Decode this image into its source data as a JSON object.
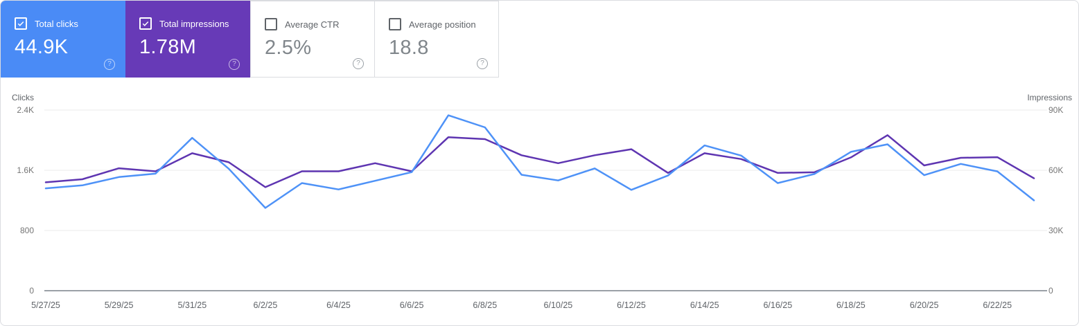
{
  "panel_title": "Search performance panel",
  "icons": {
    "help_glyph": "?",
    "checkbox_checked": "checkbox-checked-icon",
    "checkbox_unchecked": "checkbox-unchecked-icon"
  },
  "cards": [
    {
      "label": "Total clicks",
      "value": "44.9K",
      "checked": true,
      "bg": "#4a8bf6",
      "label_color": "#ffffff",
      "value_color": "#ffffff",
      "checkbox_color": "#ffffff",
      "help_color": "rgba(255,255,255,0.65)"
    },
    {
      "label": "Total impressions",
      "value": "1.78M",
      "checked": true,
      "bg": "#673ab7",
      "label_color": "#ffffff",
      "value_color": "#ffffff",
      "checkbox_color": "#ffffff",
      "help_color": "rgba(255,255,255,0.65)"
    },
    {
      "label": "Average CTR",
      "value": "2.5%",
      "checked": false,
      "bg": "#ffffff",
      "label_color": "#5f6368",
      "value_color": "#80868b",
      "checkbox_color": "#5f6368",
      "help_color": "#9aa0a6"
    },
    {
      "label": "Average position",
      "value": "18.8",
      "checked": false,
      "bg": "#ffffff",
      "label_color": "#5f6368",
      "value_color": "#80868b",
      "checkbox_color": "#5f6368",
      "help_color": "#9aa0a6"
    }
  ],
  "chart_data": {
    "type": "line",
    "title": "Clicks and impressions over time",
    "grid": true,
    "legend_position": "none",
    "grid_color": "#ebebeb",
    "baseline_color": "#9aa0a6",
    "tick_color": "#757575",
    "axis_title_color": "#5f6368",
    "x": [
      "5/27/25",
      "5/28/25",
      "5/29/25",
      "5/30/25",
      "5/31/25",
      "6/1/25",
      "6/2/25",
      "6/3/25",
      "6/4/25",
      "6/5/25",
      "6/6/25",
      "6/7/25",
      "6/8/25",
      "6/9/25",
      "6/10/25",
      "6/11/25",
      "6/12/25",
      "6/13/25",
      "6/14/25",
      "6/15/25",
      "6/16/25",
      "6/17/25",
      "6/18/25",
      "6/19/25",
      "6/20/25",
      "6/21/25",
      "6/22/25",
      "6/23/25"
    ],
    "x_tick_labels": [
      "5/27/25",
      "5/29/25",
      "5/31/25",
      "6/2/25",
      "6/4/25",
      "6/6/25",
      "6/8/25",
      "6/10/25",
      "6/12/25",
      "6/14/25",
      "6/16/25",
      "6/18/25",
      "6/20/25",
      "6/22/25"
    ],
    "left_axis": {
      "label": "Clicks",
      "max": 2400,
      "ticks": [
        "0",
        "800",
        "1.6K",
        "2.4K"
      ]
    },
    "right_axis": {
      "label": "Impressions",
      "max": 90000,
      "ticks": [
        "0",
        "30K",
        "60K",
        "90K"
      ]
    },
    "series": [
      {
        "name": "Clicks",
        "axis": "left",
        "color": "#4e92f7",
        "values": [
          1360,
          1400,
          1510,
          1555,
          2030,
          1620,
          1100,
          1430,
          1345,
          1460,
          1575,
          2330,
          2170,
          1540,
          1465,
          1625,
          1340,
          1530,
          1930,
          1795,
          1430,
          1550,
          1845,
          1945,
          1535,
          1685,
          1585,
          1200
        ]
      },
      {
        "name": "Impressions",
        "axis": "right",
        "color": "#5e35b1",
        "values": [
          54000,
          55500,
          61000,
          59500,
          68500,
          64000,
          51600,
          59500,
          59500,
          63500,
          59500,
          76500,
          75500,
          67500,
          63500,
          67500,
          70500,
          58700,
          68500,
          65600,
          58700,
          59000,
          66400,
          77500,
          62400,
          66200,
          66500,
          56000
        ]
      }
    ]
  }
}
